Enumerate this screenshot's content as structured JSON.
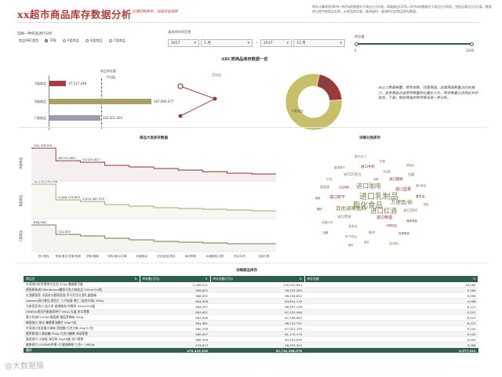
{
  "header": {
    "title": "xx超市商品库存数据分析",
    "subtitle": "—— 合理控制库存，加速资金周转",
    "note": "库存计算原则(80%~90%)的数据对于商品分为A类，两端商品(10%~30%)的数据对于商品分为B类，完结全商品分为C类。数据库过程中按商品名称。从商品库存量，查询或时，查询所对应商品库存数量。"
  },
  "filters": {
    "category_label": "选择一种商品进行分析",
    "radio_options": [
      "商品ABC类型",
      "不限",
      "A类商品",
      "B类商品",
      "C类商品"
    ],
    "radio_selected": 1,
    "period_label": "请选择时间范围",
    "start_year": "2017",
    "start_month": "1",
    "end_year": "2017",
    "end_month": "12",
    "month_suffix": "月",
    "slider_label": "库存量",
    "slider_min": "0",
    "slider_max": "1000",
    "slider_low": 0,
    "slider_high": 1000
  },
  "abc_section": {
    "title": "ABC类商品库存数据一览",
    "ref_label": "商品库存量",
    "ref_label2": "平均值",
    "bars": [
      {
        "label": "A类商品",
        "value": 47527446,
        "value_label": "47,527,446",
        "color": "#a24040"
      },
      {
        "label": "B类商品",
        "value": 287806677,
        "value_label": "287,806,677",
        "color": "#a8a064"
      },
      {
        "label": "C类商品",
        "value": 143501403,
        "value_label": "143,501,403",
        "color": "#9b9bb0"
      }
    ],
    "pct_label": "百分比",
    "pie": [
      {
        "label": "A类商品",
        "pct": "20.58%",
        "value": 20.58,
        "color": "#9b3a3a"
      },
      {
        "label": "C类商品",
        "pct": "",
        "value": 79.42,
        "color": "#c8bf6a"
      }
    ],
    "pie_text_a": "A类商品",
    "pie_text_a_pct": "20.58%",
    "pie_text_c": "C类商品",
    "note": "从以上数据来看，库存总数，还是商品，这类商品数量占比在减少，其余商品占总库存数量的比重在上升，库存数量已达到过多的状态，下面，结合商品的库存情况进一步分析。"
  },
  "line_section": {
    "title": "商品大类库存数据",
    "row_labels": [
      "A类商品",
      "B类商品",
      "C类商品"
    ],
    "x_categories": [
      "进口食品",
      "零食/果冻/坚果/肉类",
      "奶粉/辅食",
      "饮料/酒水/冲调",
      "米面粮油",
      "日化/纸品/清洁",
      "休闲零食",
      "水果蔬菜/生鲜",
      "日杂/针织",
      "全部分类"
    ],
    "data_labels": [
      {
        "row": 0,
        "labels": [
          "291,478,551",
          "68,151,684",
          "54,525,657"
        ]
      },
      {
        "row": 1,
        "labels": [
          "14,172,278,156",
          "4,446,125,693",
          "1,814,467,015"
        ]
      },
      {
        "row": 2,
        "labels": [
          "848,906",
          "541,633"
        ]
      }
    ]
  },
  "wordcloud": {
    "title": "详细分类库存",
    "words": [
      {
        "t": "进口乳制品",
        "c": "g"
      },
      {
        "t": "膨化食品",
        "c": "g"
      },
      {
        "t": "进口咖啡",
        "c": "g"
      },
      {
        "t": "进口红酒",
        "c": "g"
      },
      {
        "t": "其他调味酱料",
        "c": "g"
      },
      {
        "t": "方便面/粉",
        "c": "g"
      },
      {
        "t": "进口啤酒",
        "c": "r"
      },
      {
        "t": "进口饼干",
        "c": "r"
      },
      {
        "t": "进口坚果",
        "c": "r"
      },
      {
        "t": "进口巧克力",
        "c": "g"
      },
      {
        "t": "进口糖果",
        "c": "r"
      },
      {
        "t": "进口零食",
        "c": "g"
      },
      {
        "t": "进口牛奶",
        "c": "r"
      },
      {
        "t": "进口饮料",
        "c": "g"
      },
      {
        "t": "葡萄酒",
        "c": "g"
      },
      {
        "t": "白酒",
        "c": "r"
      },
      {
        "t": "洗发水",
        "c": "g"
      },
      {
        "t": "纸巾",
        "c": "r"
      },
      {
        "t": "大米",
        "c": "g"
      },
      {
        "t": "食用油",
        "c": "r"
      },
      {
        "t": "饼干/糕点",
        "c": "g"
      },
      {
        "t": "冲调饮品",
        "c": "r"
      },
      {
        "t": "果冻/布丁",
        "c": "g"
      },
      {
        "t": "牛奶",
        "c": "r"
      },
      {
        "t": "坚果炒货",
        "c": "g"
      },
      {
        "t": "海味零食",
        "c": "r"
      },
      {
        "t": "蜜饯果干",
        "c": "g"
      },
      {
        "t": "肉类零食",
        "c": "r"
      },
      {
        "t": "面包",
        "c": "g"
      },
      {
        "t": "酸奶",
        "c": "r"
      },
      {
        "t": "速冻食品",
        "c": "g"
      },
      {
        "t": "清洁用品",
        "c": "r"
      },
      {
        "t": "沐浴露",
        "c": "g"
      },
      {
        "t": "牙膏",
        "c": "r"
      },
      {
        "t": "调味品",
        "c": "g"
      },
      {
        "t": "杂粮",
        "c": "r"
      },
      {
        "t": "进口罐头",
        "c": "g"
      },
      {
        "t": "茶叶",
        "c": "r"
      },
      {
        "t": "蜂蜜",
        "c": "g"
      },
      {
        "t": "奶粉",
        "c": "r"
      }
    ]
  },
  "table": {
    "title": "详细商品库存",
    "columns": [
      "商品名",
      "库存数(日均)",
      "库存金额(日均)",
      "库存金额"
    ],
    "rows": [
      [
        "台湾进口旺旺雪饼大礼包 520g 兼香脆不腻",
        "1,008,911",
        "130,023,654",
        "16,085"
      ],
      [
        "德国原装进口Weideland酸奶巧克力味饮品 250ml*24瓶",
        "998,822",
        "99,533,264",
        "9,184"
      ],
      [
        "红酒酿葡萄 法国进口酿葡萄酒 罗马尼亚红酒礼盒整箱",
        "988,092",
        "96,926,852",
        "9,098"
      ],
      [
        "Apeanni进口食品 馋豆仁 三只松鼠 果仁 (混合口味) 450g",
        "984,408",
        "84,814,110",
        "4,098"
      ],
      [
        "马来西亚进口 益力多 香港维他 柠檬茶 250ml*24盒",
        "984,337",
        "68,997,146",
        "6,121"
      ],
      [
        "DANISA皇冠丹麦曲奇饼干 681g 礼盒 进口零食",
        "983,651",
        "67,425,458",
        "5,201"
      ],
      [
        "意大利进口 KOKO意面酱 番茄罗勒味 340g",
        "981,996",
        "67,708,583",
        "8,315"
      ],
      [
        "韩国进口 海太 蜂蜜黄油薯片 60g*3包",
        "981,981",
        "66,122,731",
        "8,122"
      ],
      [
        "台湾进口张君雅小妹妹 甜甜圈 巧克力味 40g*12包",
        "980,706",
        "67,027,759",
        "9,104"
      ],
      [
        "俄罗斯进口 紫皮糖 500g 巧克力糖果 休闲零食",
        "980,057",
        "61,173,175",
        "6,120"
      ],
      [
        "泰国进口 小老板 海苔卷 54g*6盒 进口零食",
        "980,006",
        "84,204,935",
        "9,090"
      ],
      [
        "越南进口 LEGEND中原 G7速溶咖啡 三合一 1600g",
        "979,913",
        "58,020,302",
        "5,088"
      ]
    ],
    "total": [
      "总计",
      "470,415,528",
      "52,742,268,078",
      "4,577,512"
    ]
  },
  "watermark": "@大数据猿"
}
